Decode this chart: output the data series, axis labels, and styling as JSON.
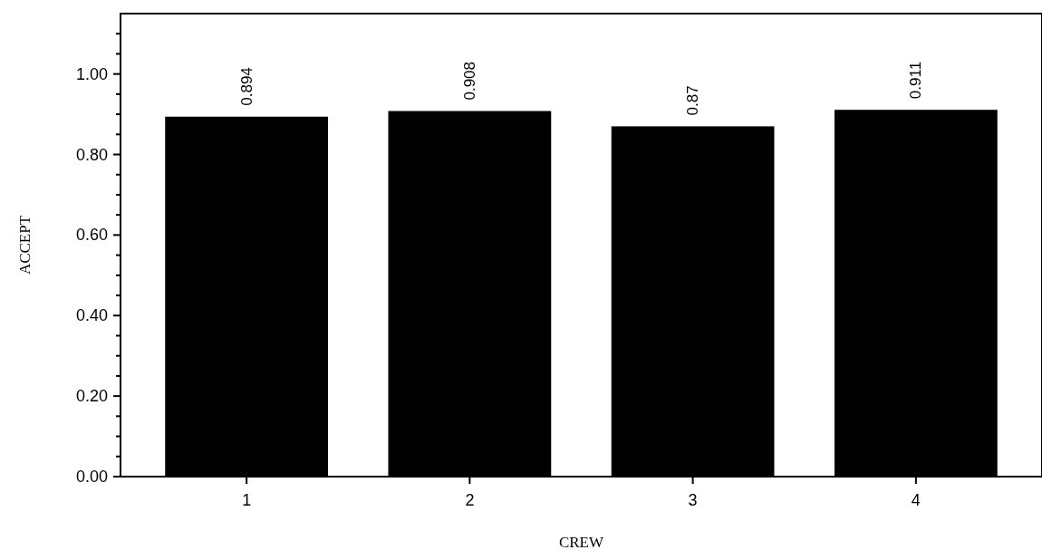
{
  "chart_data": {
    "type": "bar",
    "xlabel": "CREW",
    "ylabel": "ACCEPT",
    "categories": [
      "1",
      "2",
      "3",
      "4"
    ],
    "values": [
      0.894,
      0.908,
      0.87,
      0.911
    ],
    "color": "#000000",
    "data_labels": true,
    "ylim": [
      0,
      1.15
    ],
    "yticks": [
      {
        "value": 0,
        "label": "0.00"
      },
      {
        "value": 0.05,
        "label": null
      },
      {
        "value": 0.1,
        "label": null
      },
      {
        "value": 0.15,
        "label": null
      },
      {
        "value": 0.2,
        "label": "0.20"
      },
      {
        "value": 0.25,
        "label": null
      },
      {
        "value": 0.3,
        "label": null
      },
      {
        "value": 0.35,
        "label": null
      },
      {
        "value": 0.4,
        "label": "0.40"
      },
      {
        "value": 0.45,
        "label": null
      },
      {
        "value": 0.5,
        "label": null
      },
      {
        "value": 0.55,
        "label": null
      },
      {
        "value": 0.6,
        "label": "0.60"
      },
      {
        "value": 0.65,
        "label": null
      },
      {
        "value": 0.7,
        "label": null
      },
      {
        "value": 0.75,
        "label": null
      },
      {
        "value": 0.8,
        "label": "0.80"
      },
      {
        "value": 0.85,
        "label": null
      },
      {
        "value": 0.9,
        "label": null
      },
      {
        "value": 0.95,
        "label": null
      },
      {
        "value": 1.0,
        "label": "1.00"
      },
      {
        "value": 1.05,
        "label": null
      },
      {
        "value": 1.1,
        "label": null
      }
    ],
    "grid": false
  }
}
